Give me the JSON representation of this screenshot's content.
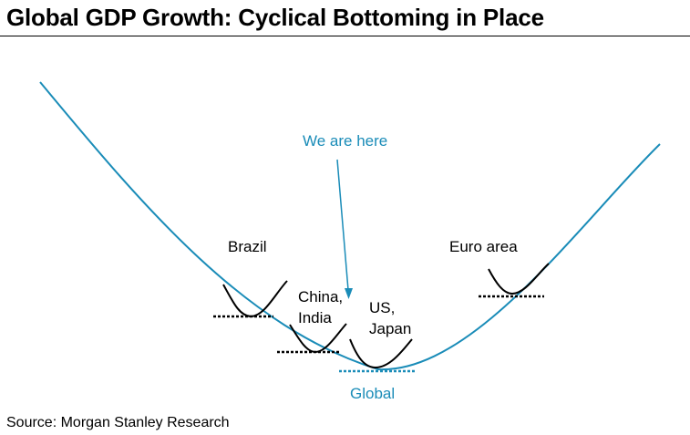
{
  "title": "Global GDP Growth: Cyclical Bottoming in Place",
  "source": "Source: Morgan Stanley Research",
  "colors": {
    "global_curve": "#1a8cb8",
    "text_dark": "#000000",
    "annotation": "#1a8cb8"
  },
  "labels": {
    "we_are_here": "We are here",
    "brazil": "Brazil",
    "china_line1": "China,",
    "china_line2": "India",
    "us_line1": "US,",
    "us_line2": "Japan",
    "euro": "Euro area",
    "global": "Global"
  }
}
